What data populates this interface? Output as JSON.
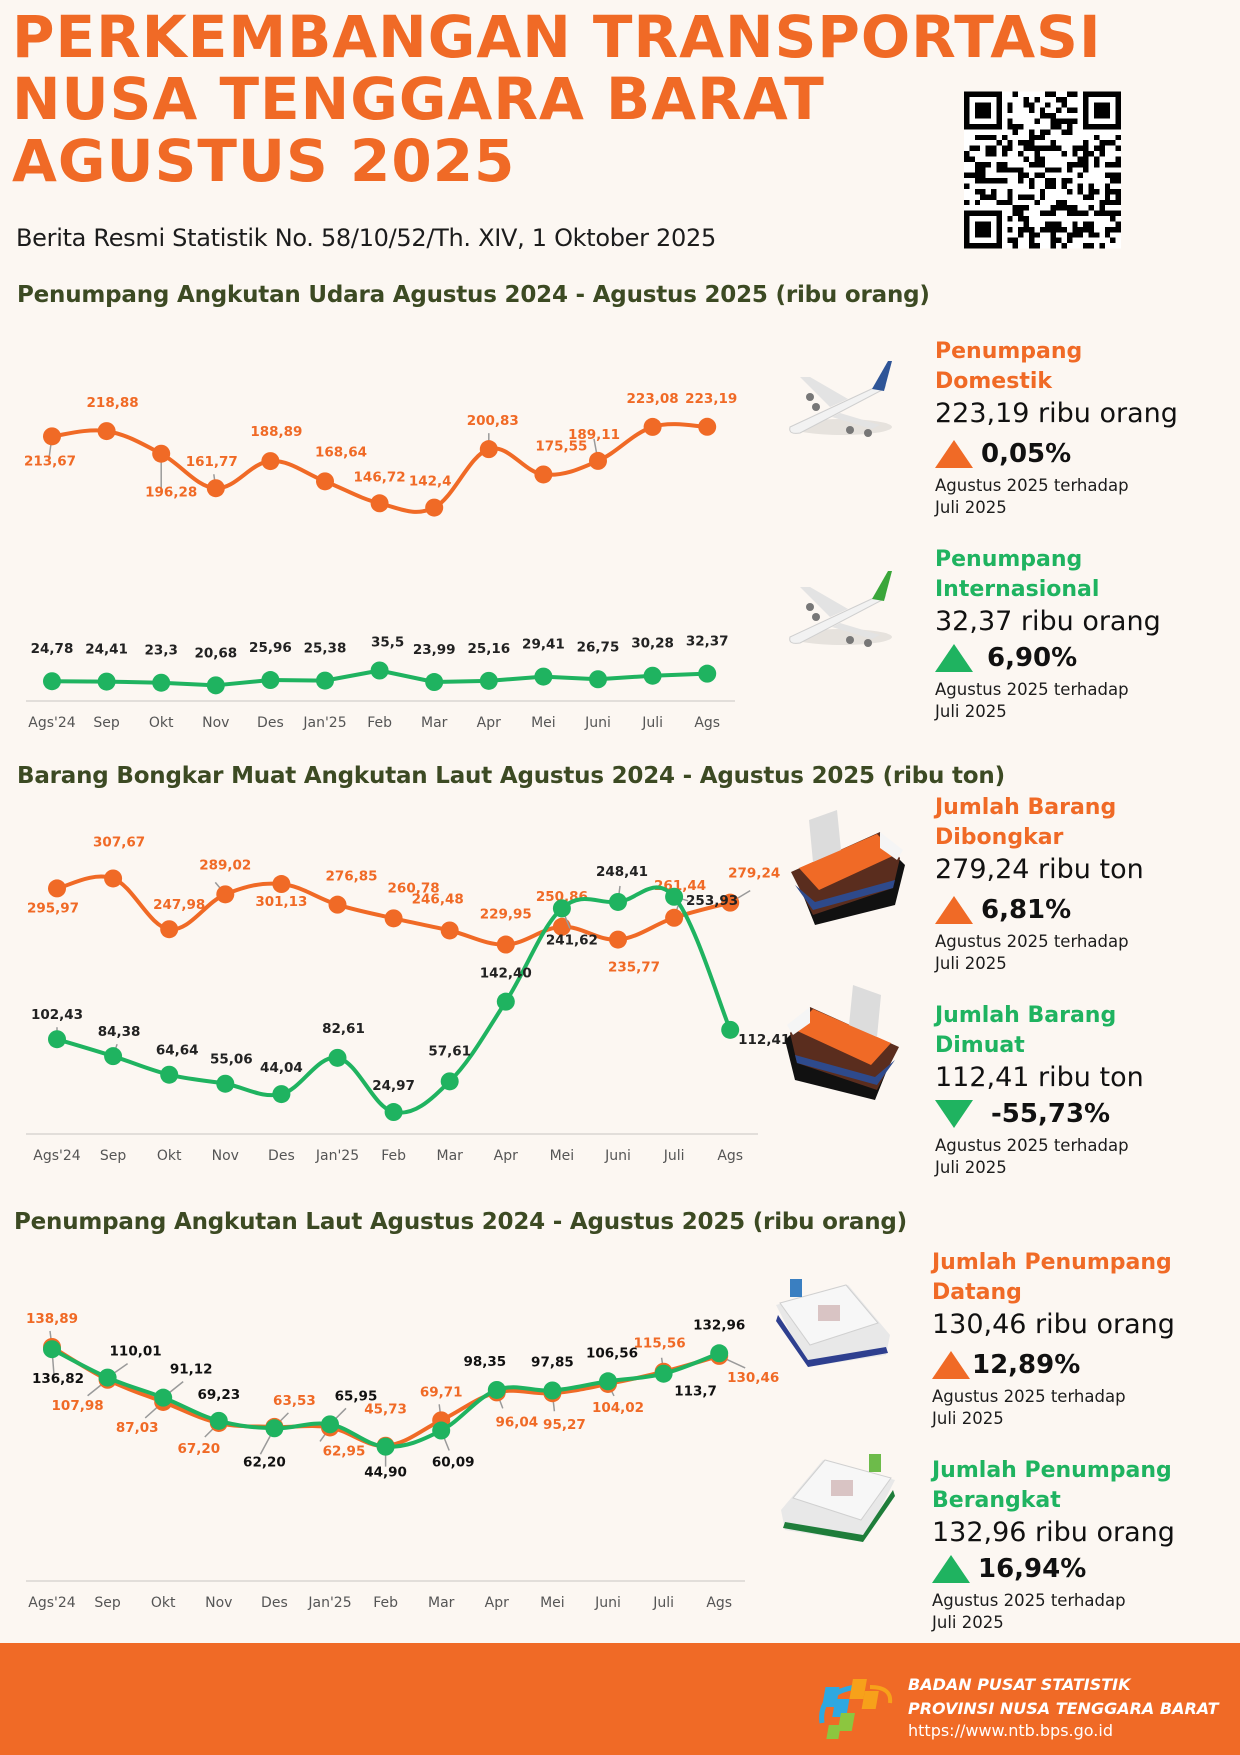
{
  "header": {
    "title_lines": [
      "PERKEMBANGAN TRANSPORTASI",
      "NUSA TENGGARA BARAT",
      "AGUSTUS 2025"
    ],
    "subtitle": "Berita Resmi Statistik No. 58/10/52/Th. XIV, 1 Oktober 2025",
    "qr_icon": "qr-code"
  },
  "colors": {
    "orange": "#f06a26",
    "green": "#1fb360",
    "heading": "#3c4a23",
    "background": "#fcf7f2"
  },
  "sections": {
    "air": {
      "title": "Penumpang Angkutan Udara Agustus 2024 - Agustus 2025 (ribu orang)",
      "stats": [
        {
          "name_lines": [
            "Penumpang",
            "Domestik"
          ],
          "value": "223,19 ribu orang",
          "direction": "up",
          "pct": "0,05%",
          "note_lines": [
            "Agustus 2025 terhadap",
            "Juli 2025"
          ],
          "color": "orange",
          "icon": "airplane-blue-icon"
        },
        {
          "name_lines": [
            "Penumpang",
            "Internasional"
          ],
          "value": "32,37 ribu orang",
          "direction": "up",
          "pct": "6,90%",
          "note_lines": [
            "Agustus 2025 terhadap",
            "Juli 2025"
          ],
          "color": "green",
          "icon": "airplane-green-icon"
        }
      ]
    },
    "cargo": {
      "title": "Barang Bongkar Muat Angkutan Laut Agustus 2024 - Agustus 2025 (ribu ton)",
      "stats": [
        {
          "name_lines": [
            "Jumlah Barang",
            "Dibongkar"
          ],
          "value": "279,24 ribu ton",
          "direction": "up",
          "pct": "6,81%",
          "note_lines": [
            "Agustus 2025 terhadap",
            "Juli 2025"
          ],
          "color": "orange",
          "icon": "cargo-ship-icon"
        },
        {
          "name_lines": [
            "Jumlah Barang",
            "Dimuat"
          ],
          "value": "112,41 ribu ton",
          "direction": "down",
          "pct": "-55,73%",
          "note_lines": [
            "Agustus 2025 terhadap",
            "Juli 2025"
          ],
          "color": "green",
          "icon": "cargo-ship-icon"
        }
      ]
    },
    "sea": {
      "title": "Penumpang Angkutan Laut Agustus 2024 - Agustus 2025 (ribu orang)",
      "stats": [
        {
          "name_lines": [
            "Jumlah Penumpang",
            "Datang"
          ],
          "value": "130,46 ribu orang",
          "direction": "up",
          "pct": "12,89%",
          "note_lines": [
            "Agustus 2025 terhadap",
            "Juli 2025"
          ],
          "color": "orange",
          "icon": "passenger-ship-blue-icon"
        },
        {
          "name_lines": [
            "Jumlah Penumpang",
            "Berangkat"
          ],
          "value": "132,96 ribu orang",
          "direction": "up",
          "pct": "16,94%",
          "note_lines": [
            "Agustus 2025 terhadap",
            "Juli 2025"
          ],
          "color": "green",
          "icon": "passenger-ship-green-icon"
        }
      ]
    }
  },
  "chart_data": [
    {
      "type": "line",
      "title": "Penumpang Angkutan Udara Agustus 2024 - Agustus 2025 (ribu orang)",
      "categories": [
        "Ags'24",
        "Sep",
        "Okt",
        "Nov",
        "Des",
        "Jan'25",
        "Feb",
        "Mar",
        "Apr",
        "Mei",
        "Juni",
        "Juli",
        "Ags"
      ],
      "series": [
        {
          "name": "Penumpang Domestik",
          "color": "#f06a26",
          "values": [
            213.67,
            218.88,
            196.28,
            161.77,
            188.89,
            168.64,
            146.72,
            142.4,
            200.83,
            175.55,
            189.11,
            223.08,
            223.19
          ],
          "labels": [
            "213,67",
            "218,88",
            "196,28",
            "161,77",
            "188,89",
            "168,64",
            "146,72",
            "142,4",
            "200,83",
            "175,55",
            "189,11",
            "223,08",
            "223,19"
          ]
        },
        {
          "name": "Penumpang Internasional",
          "color": "#1fb360",
          "values": [
            24.78,
            24.41,
            23.3,
            20.68,
            25.96,
            25.38,
            35.5,
            23.99,
            25.16,
            29.41,
            26.75,
            30.28,
            32.37
          ],
          "labels": [
            "24,78",
            "24,41",
            "23,3",
            "20,68",
            "25,96",
            "25,38",
            "35,5",
            "23,99",
            "25,16",
            "29,41",
            "26,75",
            "30,28",
            "32,37"
          ]
        }
      ],
      "xlabel": "",
      "ylabel": "ribu orang",
      "grid": false,
      "legend": "right"
    },
    {
      "type": "line",
      "title": "Barang Bongkar Muat Angkutan Laut Agustus 2024 - Agustus 2025 (ribu ton)",
      "categories": [
        "Ags'24",
        "Sep",
        "Okt",
        "Nov",
        "Des",
        "Jan'25",
        "Feb",
        "Mar",
        "Apr",
        "Mei",
        "Juni",
        "Juli",
        "Ags"
      ],
      "series": [
        {
          "name": "Jumlah Barang Dibongkar",
          "color": "#f06a26",
          "values": [
            295.97,
            307.67,
            247.98,
            289.02,
            301.13,
            276.85,
            260.78,
            246.48,
            229.95,
            250.86,
            235.77,
            261.44,
            279.24
          ],
          "labels": [
            "295,97",
            "307,67",
            "247,98",
            "289,02",
            "301,13",
            "276,85",
            "260,78",
            "246,48",
            "229,95",
            "250,86",
            "235,77",
            "261,44",
            "279,24"
          ]
        },
        {
          "name": "Jumlah Barang Dimuat",
          "color": "#1fb360",
          "values": [
            102.43,
            84.38,
            64.64,
            55.06,
            44.04,
            82.61,
            24.97,
            57.61,
            142.4,
            241.62,
            248.41,
            253.93,
            112.41
          ],
          "labels": [
            "102,43",
            "84,38",
            "64,64",
            "55,06",
            "44,04",
            "82,61",
            "24,97",
            "57,61",
            "142,40",
            "241,62",
            "248,41",
            "253,93",
            "112,41"
          ]
        }
      ],
      "xlabel": "",
      "ylabel": "ribu ton",
      "grid": false,
      "legend": "right"
    },
    {
      "type": "line",
      "title": "Penumpang Angkutan Laut Agustus 2024 - Agustus 2025 (ribu orang)",
      "categories": [
        "Ags'24",
        "Sep",
        "Okt",
        "Nov",
        "Des",
        "Jan'25",
        "Feb",
        "Mar",
        "Apr",
        "Mei",
        "Juni",
        "Juli",
        "Ags"
      ],
      "series": [
        {
          "name": "Jumlah Penumpang Datang",
          "color": "#f06a26",
          "values": [
            138.89,
            107.98,
            87.03,
            67.2,
            63.53,
            62.95,
            45.73,
            69.71,
            96.04,
            95.27,
            104.02,
            115.56,
            130.46
          ],
          "labels": [
            "138,89",
            "107,98",
            "87,03",
            "67,20",
            "63,53",
            "62,95",
            "45,73",
            "69,71",
            "96,04",
            "95,27",
            "104,02",
            "115,56",
            "130,46"
          ]
        },
        {
          "name": "Jumlah Penumpang Berangkat",
          "color": "#1fb360",
          "values": [
            136.82,
            110.01,
            91.12,
            69.23,
            62.2,
            65.95,
            44.9,
            60.09,
            98.35,
            97.85,
            106.56,
            113.7,
            132.96
          ],
          "labels": [
            "136,82",
            "110,01",
            "91,12",
            "69,23",
            "62,20",
            "65,95",
            "44,90",
            "60,09",
            "98,35",
            "97,85",
            "106,56",
            "113,7",
            "132,96"
          ]
        }
      ],
      "xlabel": "",
      "ylabel": "ribu orang",
      "grid": false,
      "legend": "right"
    }
  ],
  "footer": {
    "org_line1": "BADAN PUSAT STATISTIK",
    "org_line2": "PROVINSI NUSA TENGGARA BARAT",
    "url": "https://www.ntb.bps.go.id",
    "logo_icon": "bps-logo"
  }
}
